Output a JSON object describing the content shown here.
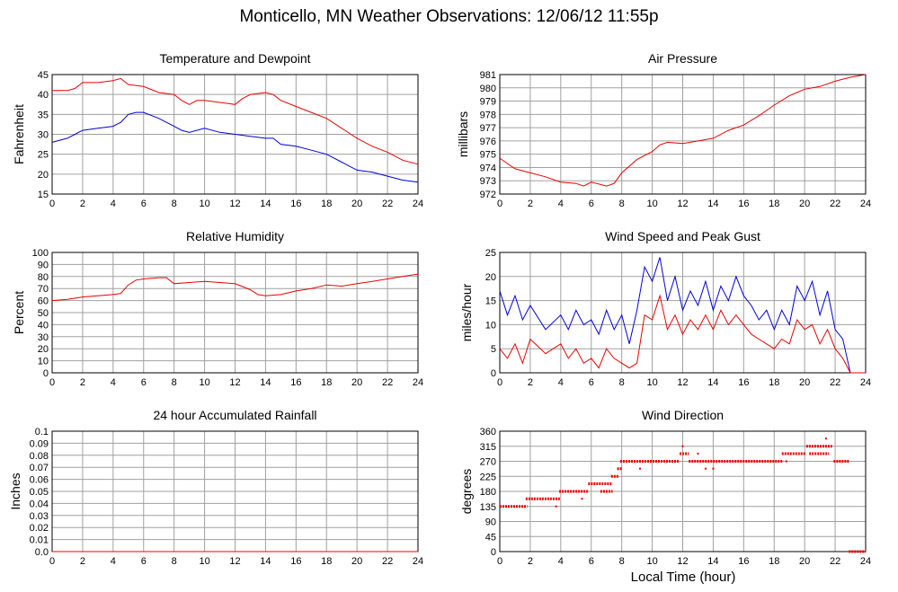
{
  "page": {
    "title": "Monticello, MN Weather Observations: 12/06/12 11:55p",
    "xlabel": "Local Time (hour)"
  },
  "colors": {
    "series_red": "#ee0000",
    "series_blue": "#0000dd",
    "grid": "#a0a0a0",
    "frame": "#000000"
  },
  "chart_data": [
    {
      "id": "temp",
      "type": "line",
      "title": "Temperature and Dewpoint",
      "ylabel": "Fahrenheit",
      "xlim": [
        0,
        24
      ],
      "ylim": [
        15,
        45
      ],
      "xticks": [
        0,
        2,
        4,
        6,
        8,
        10,
        12,
        14,
        16,
        18,
        20,
        22,
        24
      ],
      "yticks": [
        15,
        20,
        25,
        30,
        35,
        40,
        45
      ],
      "grid": true,
      "series": [
        {
          "color": "#ee0000",
          "x": [
            0,
            1,
            1.5,
            2,
            3,
            4,
            4.5,
            5,
            6,
            7,
            8,
            8.5,
            9,
            9.5,
            10,
            11,
            12,
            12.5,
            13,
            14,
            14.5,
            15,
            16,
            17,
            18,
            19,
            20,
            21,
            22,
            23,
            24
          ],
          "y": [
            41,
            41,
            41.5,
            43,
            43,
            43.5,
            44,
            42.5,
            42,
            40.5,
            40,
            38.5,
            37.5,
            38.5,
            38.5,
            38,
            37.5,
            39,
            40,
            40.5,
            40,
            38.5,
            37,
            35.5,
            34,
            31.5,
            29,
            27,
            25.5,
            23.5,
            22.5
          ]
        },
        {
          "color": "#0000dd",
          "x": [
            0,
            1,
            1.5,
            2,
            3,
            4,
            4.5,
            5,
            5.5,
            6,
            7,
            7.5,
            8,
            8.5,
            9,
            10,
            11,
            12,
            13,
            14,
            14.5,
            15,
            16,
            17,
            18,
            19,
            20,
            21,
            22,
            23,
            24
          ],
          "y": [
            28,
            29,
            30,
            31,
            31.5,
            32,
            33,
            35,
            35.5,
            35.5,
            34,
            33,
            32,
            31,
            30.5,
            31.5,
            30.5,
            30,
            29.5,
            29,
            29,
            27.5,
            27,
            26,
            25,
            23,
            21,
            20.5,
            19.5,
            18.5,
            18
          ]
        }
      ]
    },
    {
      "id": "pressure",
      "type": "line",
      "title": "Air Pressure",
      "ylabel": "millibars",
      "xlim": [
        0,
        24
      ],
      "ylim": [
        972,
        981
      ],
      "xticks": [
        0,
        2,
        4,
        6,
        8,
        10,
        12,
        14,
        16,
        18,
        20,
        22,
        24
      ],
      "yticks": [
        972,
        973,
        974,
        975,
        976,
        977,
        978,
        979,
        980,
        981
      ],
      "grid": true,
      "series": [
        {
          "color": "#ee0000",
          "x": [
            0,
            0.5,
            1,
            2,
            3,
            4,
            5,
            5.5,
            6,
            7,
            7.5,
            8,
            9,
            10,
            10.5,
            11,
            12,
            13,
            14,
            15,
            16,
            17,
            18,
            19,
            20,
            21,
            22,
            23,
            24
          ],
          "y": [
            974.7,
            974.3,
            973.9,
            973.6,
            973.3,
            972.9,
            972.8,
            972.6,
            972.9,
            972.6,
            972.8,
            973.6,
            974.6,
            975.2,
            975.7,
            975.9,
            975.8,
            976.0,
            976.2,
            976.8,
            977.2,
            977.9,
            978.7,
            979.4,
            979.9,
            980.1,
            980.5,
            980.8,
            981.0
          ]
        }
      ]
    },
    {
      "id": "humidity",
      "type": "line",
      "title": "Relative Humidity",
      "ylabel": "Percent",
      "xlim": [
        0,
        24
      ],
      "ylim": [
        0,
        100
      ],
      "xticks": [
        0,
        2,
        4,
        6,
        8,
        10,
        12,
        14,
        16,
        18,
        20,
        22,
        24
      ],
      "yticks": [
        0,
        10,
        20,
        30,
        40,
        50,
        60,
        70,
        80,
        90,
        100
      ],
      "grid": true,
      "series": [
        {
          "color": "#ee0000",
          "x": [
            0,
            1,
            2,
            3,
            4,
            4.5,
            5,
            5.5,
            6,
            7,
            7.5,
            8,
            9,
            10,
            11,
            12,
            13,
            13.5,
            14,
            15,
            16,
            17,
            18,
            19,
            20,
            21,
            22,
            23,
            24
          ],
          "y": [
            60,
            61,
            63,
            64,
            65,
            66,
            73,
            77,
            78,
            79,
            79,
            74,
            75,
            76,
            75,
            74,
            69,
            65,
            64,
            65,
            68,
            70,
            73,
            72,
            74,
            76,
            78,
            80,
            82
          ]
        }
      ]
    },
    {
      "id": "wind",
      "type": "line",
      "title": "Wind Speed and Peak Gust",
      "ylabel": "miles/hour",
      "xlim": [
        0,
        24
      ],
      "ylim": [
        0,
        25
      ],
      "xticks": [
        0,
        2,
        4,
        6,
        8,
        10,
        12,
        14,
        16,
        18,
        20,
        22,
        24
      ],
      "yticks": [
        0,
        5,
        10,
        15,
        20,
        25
      ],
      "grid": true,
      "series": [
        {
          "color": "#0000dd",
          "x": [
            0,
            0.5,
            1,
            1.5,
            2,
            3,
            4,
            4.5,
            5,
            5.5,
            6,
            6.5,
            7,
            7.5,
            8,
            8.5,
            9,
            9.5,
            10,
            10.5,
            11,
            11.5,
            12,
            12.5,
            13,
            13.5,
            14,
            14.5,
            15,
            15.5,
            16,
            16.5,
            17,
            17.5,
            18,
            18.5,
            19,
            19.5,
            20,
            20.5,
            21,
            21.5,
            22,
            22.5,
            23,
            24
          ],
          "y": [
            17,
            12,
            16,
            11,
            14,
            9,
            12,
            9,
            13,
            10,
            11,
            8,
            13,
            9,
            12,
            6,
            13,
            22,
            19,
            24,
            15,
            20,
            13,
            17,
            14,
            19,
            13,
            18,
            15,
            20,
            16,
            14,
            11,
            13,
            9,
            13,
            10,
            18,
            15,
            19,
            12,
            17,
            9,
            7,
            0,
            0
          ]
        },
        {
          "color": "#ee0000",
          "x": [
            0,
            0.5,
            1,
            1.5,
            2,
            3,
            4,
            4.5,
            5,
            5.5,
            6,
            6.5,
            7,
            7.5,
            8,
            8.5,
            9,
            9.5,
            10,
            10.5,
            11,
            11.5,
            12,
            12.5,
            13,
            13.5,
            14,
            14.5,
            15,
            15.5,
            16,
            16.5,
            17,
            17.5,
            18,
            18.5,
            19,
            19.5,
            20,
            20.5,
            21,
            21.5,
            22,
            22.5,
            23,
            24
          ],
          "y": [
            5,
            3,
            6,
            2,
            7,
            4,
            6,
            3,
            5,
            2,
            3,
            1,
            5,
            3,
            2,
            1,
            2,
            12,
            11,
            16,
            9,
            12,
            8,
            11,
            9,
            12,
            9,
            13,
            10,
            12,
            10,
            8,
            7,
            6,
            5,
            7,
            6,
            11,
            9,
            10,
            6,
            9,
            5,
            3,
            0,
            0
          ]
        }
      ]
    },
    {
      "id": "rain",
      "type": "line",
      "title": "24 hour Accumulated Rainfall",
      "ylabel": "Inches",
      "xlim": [
        0,
        24
      ],
      "ylim": [
        0,
        0.1
      ],
      "xticks": [
        0,
        2,
        4,
        6,
        8,
        10,
        12,
        14,
        16,
        18,
        20,
        22,
        24
      ],
      "yticks": [
        "0.0",
        "0.01",
        "0.02",
        "0.03",
        "0.04",
        "0.05",
        "0.06",
        "0.07",
        "0.08",
        "0.09",
        "0.1"
      ],
      "grid": true,
      "series": [
        {
          "color": "#ee0000",
          "x": [
            0,
            24
          ],
          "y": [
            0,
            0
          ]
        }
      ]
    },
    {
      "id": "direction",
      "type": "scatter",
      "title": "Wind Direction",
      "ylabel": "degrees",
      "xlim": [
        0,
        24
      ],
      "ylim": [
        0,
        360
      ],
      "xticks": [
        0,
        2,
        4,
        6,
        8,
        10,
        12,
        14,
        16,
        18,
        20,
        22,
        24
      ],
      "yticks": [
        0,
        45,
        90,
        135,
        180,
        225,
        270,
        315,
        360
      ],
      "grid": true,
      "segments": [
        {
          "x0": 0.0,
          "x1": 1.8,
          "y": 135
        },
        {
          "x0": 1.7,
          "x1": 4.0,
          "y": 158
        },
        {
          "x0": 3.9,
          "x1": 5.8,
          "y": 180
        },
        {
          "x0": 5.8,
          "x1": 7.4,
          "y": 203
        },
        {
          "x0": 6.6,
          "x1": 7.4,
          "y": 180
        },
        {
          "x0": 7.3,
          "x1": 7.8,
          "y": 225
        },
        {
          "x0": 7.7,
          "x1": 8.0,
          "y": 248
        },
        {
          "x0": 7.9,
          "x1": 11.8,
          "y": 270
        },
        {
          "x0": 11.8,
          "x1": 12.4,
          "y": 293
        },
        {
          "x0": 12.4,
          "x1": 18.6,
          "y": 270
        },
        {
          "x0": 18.5,
          "x1": 20.1,
          "y": 293
        },
        {
          "x0": 20.1,
          "x1": 21.8,
          "y": 315
        },
        {
          "x0": 20.3,
          "x1": 21.6,
          "y": 293
        },
        {
          "x0": 21.9,
          "x1": 22.9,
          "y": 270
        },
        {
          "x0": 22.9,
          "x1": 24.0,
          "y": 0
        }
      ],
      "points": [
        [
          3.7,
          135
        ],
        [
          5.4,
          158
        ],
        [
          9.2,
          248
        ],
        [
          12.0,
          315
        ],
        [
          13.0,
          293
        ],
        [
          13.5,
          248
        ],
        [
          14.0,
          248
        ],
        [
          21.4,
          338
        ],
        [
          18.8,
          270
        ]
      ]
    }
  ]
}
